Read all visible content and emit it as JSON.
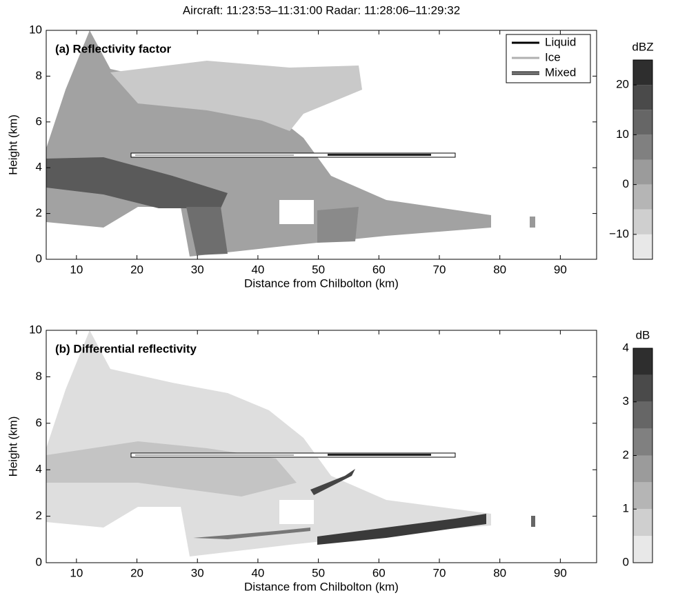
{
  "title": "Aircraft: 11:23:53–11:31:00   Radar: 11:28:06–11:29:32",
  "chart_data": [
    {
      "type": "heatmap",
      "title": "(a) Reflectivity factor",
      "xlabel": "Distance from Chilbolton (km)",
      "ylabel": "Height (km)",
      "xlim": [
        5,
        96
      ],
      "xticks": [
        10,
        20,
        30,
        40,
        50,
        60,
        70,
        80,
        90
      ],
      "ylim": [
        0,
        10
      ],
      "yticks": [
        0,
        2,
        4,
        6,
        8,
        10
      ],
      "legend": [
        {
          "name": "Liquid",
          "color": "#000000"
        },
        {
          "name": "Ice",
          "color": "#b0b0b0"
        },
        {
          "name": "Mixed",
          "color": "#808080"
        }
      ],
      "legend_position": "upper right",
      "colorbar": {
        "label": "dBZ",
        "lim": [
          -15,
          25
        ],
        "ticks": [
          {
            "value": -10,
            "label": "−10"
          },
          0,
          10,
          20
        ],
        "colors": [
          "#e8e8e8",
          "#cfcfcf",
          "#b5b5b5",
          "#9b9b9b",
          "#808080",
          "#666666",
          "#4a4a4a",
          "#2e2e2e"
        ]
      }
    },
    {
      "type": "heatmap",
      "title": "(b) Differential reflectivity",
      "xlabel": "Distance from Chilbolton (km)",
      "ylabel": "Height (km)",
      "xlim": [
        5,
        96
      ],
      "xticks": [
        10,
        20,
        30,
        40,
        50,
        60,
        70,
        80,
        90
      ],
      "ylim": [
        0,
        10
      ],
      "yticks": [
        0,
        2,
        4,
        6,
        8,
        10
      ],
      "colorbar": {
        "label": "dB",
        "lim": [
          0,
          4
        ],
        "ticks": [
          0,
          1,
          2,
          3,
          4
        ],
        "colors": [
          "#e8e8e8",
          "#cfcfcf",
          "#b5b5b5",
          "#9b9b9b",
          "#808080",
          "#666666",
          "#4a4a4a",
          "#2e2e2e"
        ]
      }
    }
  ]
}
